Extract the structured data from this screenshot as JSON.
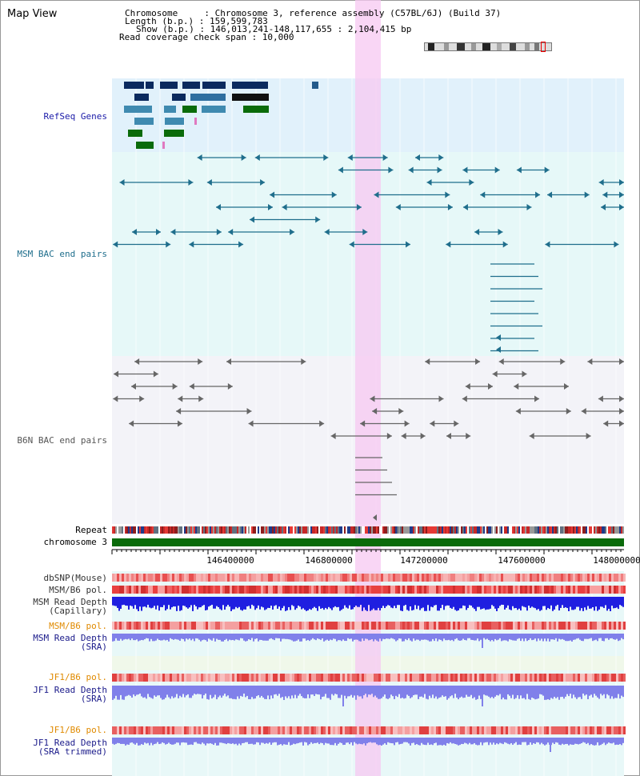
{
  "title": "Map View",
  "header": {
    "line1": "Chromosome     : Chromosome 3, reference assembly (C57BL/6J) (Build 37)",
    "line2": "Length (b.p.) : 159,599,783",
    "line3": "Show (b.p.) : 146,013,241-148,117,655 : 2,104,415 bp",
    "line4": "Read coverage check span : 10,000"
  },
  "tracks": {
    "refseq": "RefSeq Genes",
    "msm_bac": "MSM BAC end pairs",
    "b6n_bac": "B6N BAC end pairs",
    "repeat": "Repeat",
    "chromosome": "chromosome 3",
    "dbsnp": "dbSNP(Mouse)",
    "msm_pol_1": "MSM/B6 pol.",
    "msm_depth_cap_1": "MSM Read Depth",
    "msm_depth_cap_2": "(Capillary)",
    "msm_pol_2": "MSM/B6 pol.",
    "msm_depth_sra_1": "MSM Read Depth",
    "msm_depth_sra_2": "(SRA)",
    "jf1_pol_1": "JF1/B6 pol.",
    "jf1_depth_1": "JF1 Read Depth",
    "jf1_depth_2": "(SRA)",
    "jf1_pol_2": "JF1/B6 pol.",
    "jf1_trim_1": "JF1 Read Depth",
    "jf1_trim_2": "(SRA trimmed)"
  },
  "ruler": {
    "ticks": [
      "146400000",
      "146800000",
      "147200000",
      "147600000",
      "148000000"
    ]
  },
  "colors": {
    "refseq_label": "#1a1aa8",
    "msm_label": "#1f6e8c",
    "b6n_label": "#555555",
    "orange_label": "#e08a00",
    "blue_label": "#1a1a8a",
    "highlight": "#f7d4f4",
    "chrom_bar": "#0a6b0a"
  }
}
